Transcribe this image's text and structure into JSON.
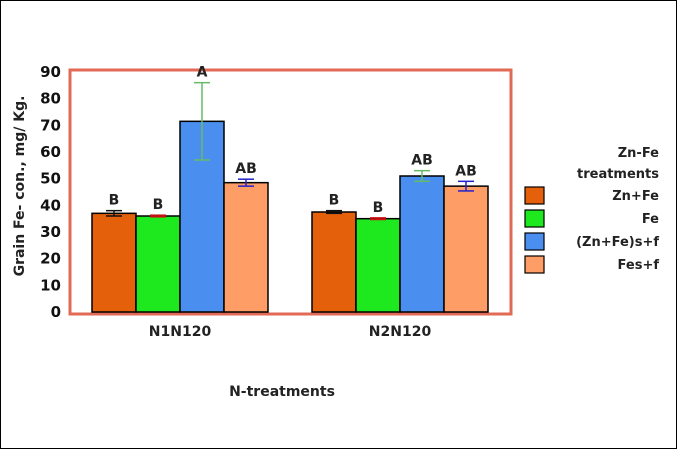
{
  "chart_data": {
    "type": "bar",
    "xlabel": "N-treatments",
    "ylabel": "Grain Fe- con., mg/ Kg.",
    "ylim": [
      0,
      90
    ],
    "yticks": [
      0,
      10,
      20,
      30,
      40,
      50,
      60,
      70,
      80,
      90
    ],
    "categories": [
      "N1N120",
      "N2N120"
    ],
    "legend_title": "Zn-Fe treatments",
    "legend_position": "right",
    "grid": false,
    "series": [
      {
        "name": "Zn+Fe",
        "color": "#e4600a",
        "values": [
          37,
          37.5
        ],
        "errors": [
          1,
          0.5
        ],
        "letters": [
          "B",
          "B"
        ],
        "error_color": "#111111"
      },
      {
        "name": "Fe",
        "color": "#1ee81e",
        "values": [
          36,
          35
        ],
        "errors": [
          0.3,
          0.3
        ],
        "letters": [
          "B",
          "B"
        ],
        "error_color": "#cc1111"
      },
      {
        "name": "(Zn+Fe)s+f",
        "color": "#4a8ff0",
        "values": [
          71.5,
          51
        ],
        "errors": [
          14.5,
          2
        ],
        "letters": [
          "A",
          "AB"
        ],
        "error_color": "#66bb66"
      },
      {
        "name": "Fes+f",
        "color": "#ff9d66",
        "values": [
          48.5,
          47.2
        ],
        "errors": [
          1.3,
          1.8
        ],
        "letters": [
          "AB",
          "AB"
        ],
        "error_color": "#2222cc"
      }
    ]
  }
}
